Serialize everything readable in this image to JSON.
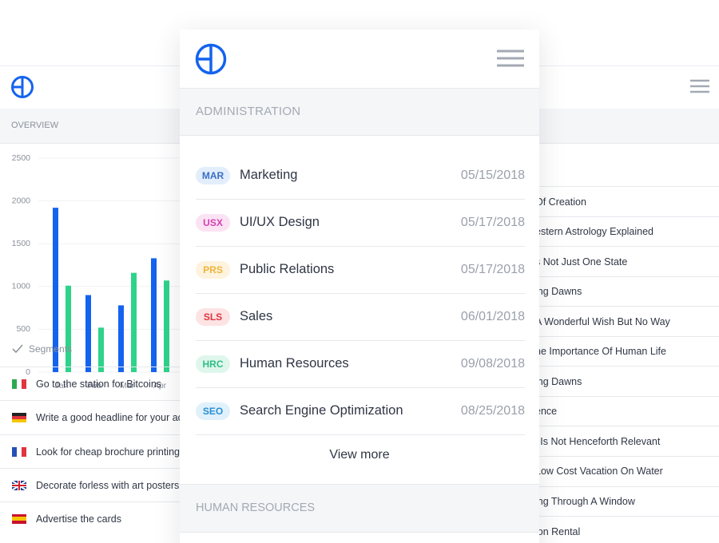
{
  "left_panel": {
    "section": "OVERVIEW",
    "chart_data": {
      "type": "bar",
      "categories": [
        "Jan",
        "Feb",
        "Mar",
        "Apr"
      ],
      "series": [
        {
          "color": "#1463ef",
          "values": [
            1920,
            900,
            780,
            1330
          ]
        },
        {
          "color": "#2ed38a",
          "values": [
            1010,
            520,
            1160,
            1070
          ]
        }
      ],
      "ylim": [
        0,
        2500
      ],
      "yticks": [
        0,
        500,
        1000,
        1500,
        2000,
        2500
      ],
      "grid": true
    },
    "segments_label": "Segments",
    "items": [
      "Go to the station for Bitcoins",
      "Write a good headline for your ad",
      "Look for cheap brochure printing",
      "Decorate forless with art posters",
      "Advertise the cards"
    ]
  },
  "card": {
    "section": "ADMINISTRATION",
    "rows": [
      {
        "code": "MAR",
        "name": "Marketing",
        "date": "05/15/2018"
      },
      {
        "code": "USX",
        "name": "UI/UX Design",
        "date": "05/17/2018"
      },
      {
        "code": "PRS",
        "name": "Public Relations",
        "date": "05/17/2018"
      },
      {
        "code": "SLS",
        "name": "Sales",
        "date": "06/01/2018"
      },
      {
        "code": "HRC",
        "name": "Human Resources",
        "date": "09/08/2018"
      },
      {
        "code": "SEO",
        "name": "Search Engine Optimization",
        "date": "08/25/2018"
      }
    ],
    "view_more": "View more",
    "next_section": "HUMAN RESOURCES"
  },
  "right_panel": {
    "items": [
      "Of Creation",
      "estern Astrology Explained",
      "s Not Just One State",
      "ing Dawns",
      "A Wonderful Wish But No Way",
      "he Importance Of Human Life",
      "ing Dawns",
      "ence",
      "l Is Not Henceforth Relevant",
      " Low Cost Vacation On Water",
      "ing Through A Window",
      "ion Rental"
    ]
  }
}
